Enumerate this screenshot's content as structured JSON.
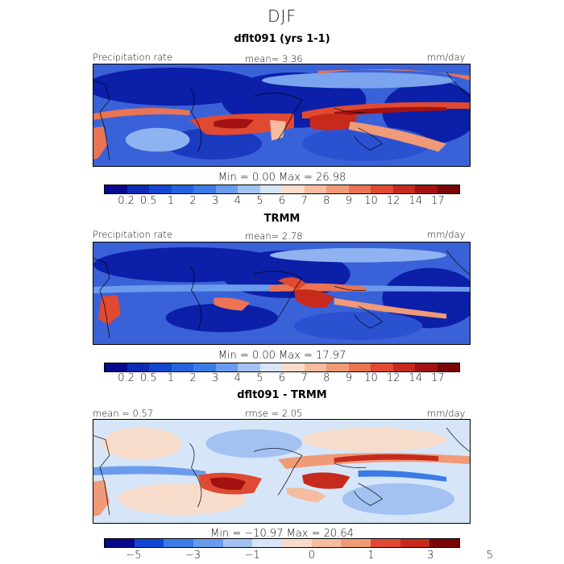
{
  "title": "DJF",
  "panels": [
    {
      "title": "dflt091 (yrs 1-1)",
      "left_label": "Precipitation rate",
      "center_label": "mean=    3.36",
      "right_label": "mm/day",
      "min_max": "Min =    0.00  Max =   26.98"
    },
    {
      "title": "TRMM",
      "left_label": "Precipitation rate",
      "center_label": "mean=    2.78",
      "right_label": "mm/day",
      "min_max": "Min =    0.00  Max =   17.97"
    },
    {
      "title": "dflt091 - TRMM",
      "left_label": "mean =   0.57",
      "center_label": "rmse =    2.05",
      "right_label": "mm/day",
      "min_max": "Min = −10.97  Max =   20.64"
    }
  ],
  "precip_colorbar": {
    "colors": [
      "#08088c",
      "#0d2ab5",
      "#1346d2",
      "#2463e0",
      "#3a7be6",
      "#6b9bec",
      "#a3c2f2",
      "#d6e6f8",
      "#f8dccb",
      "#f5bca0",
      "#f09a78",
      "#ea7453",
      "#e04a32",
      "#c62a1c",
      "#a31212",
      "#7a0505"
    ],
    "tick_labels": [
      "0.2",
      "0.5",
      "1",
      "2",
      "3",
      "4",
      "5",
      "6",
      "7",
      "8",
      "9",
      "10",
      "12",
      "14",
      "17"
    ]
  },
  "diff_colorbar": {
    "colors": [
      "#08088c",
      "#1346d2",
      "#3a7be6",
      "#6b9bec",
      "#a3c2f2",
      "#d6e6f8",
      "#f8dccb",
      "#f5bca0",
      "#f09a78",
      "#e04a32",
      "#c62a1c",
      "#7a0505"
    ],
    "tick_labels": [
      "−5",
      "−3",
      "−1",
      "0",
      "1",
      "3",
      "5"
    ]
  }
}
